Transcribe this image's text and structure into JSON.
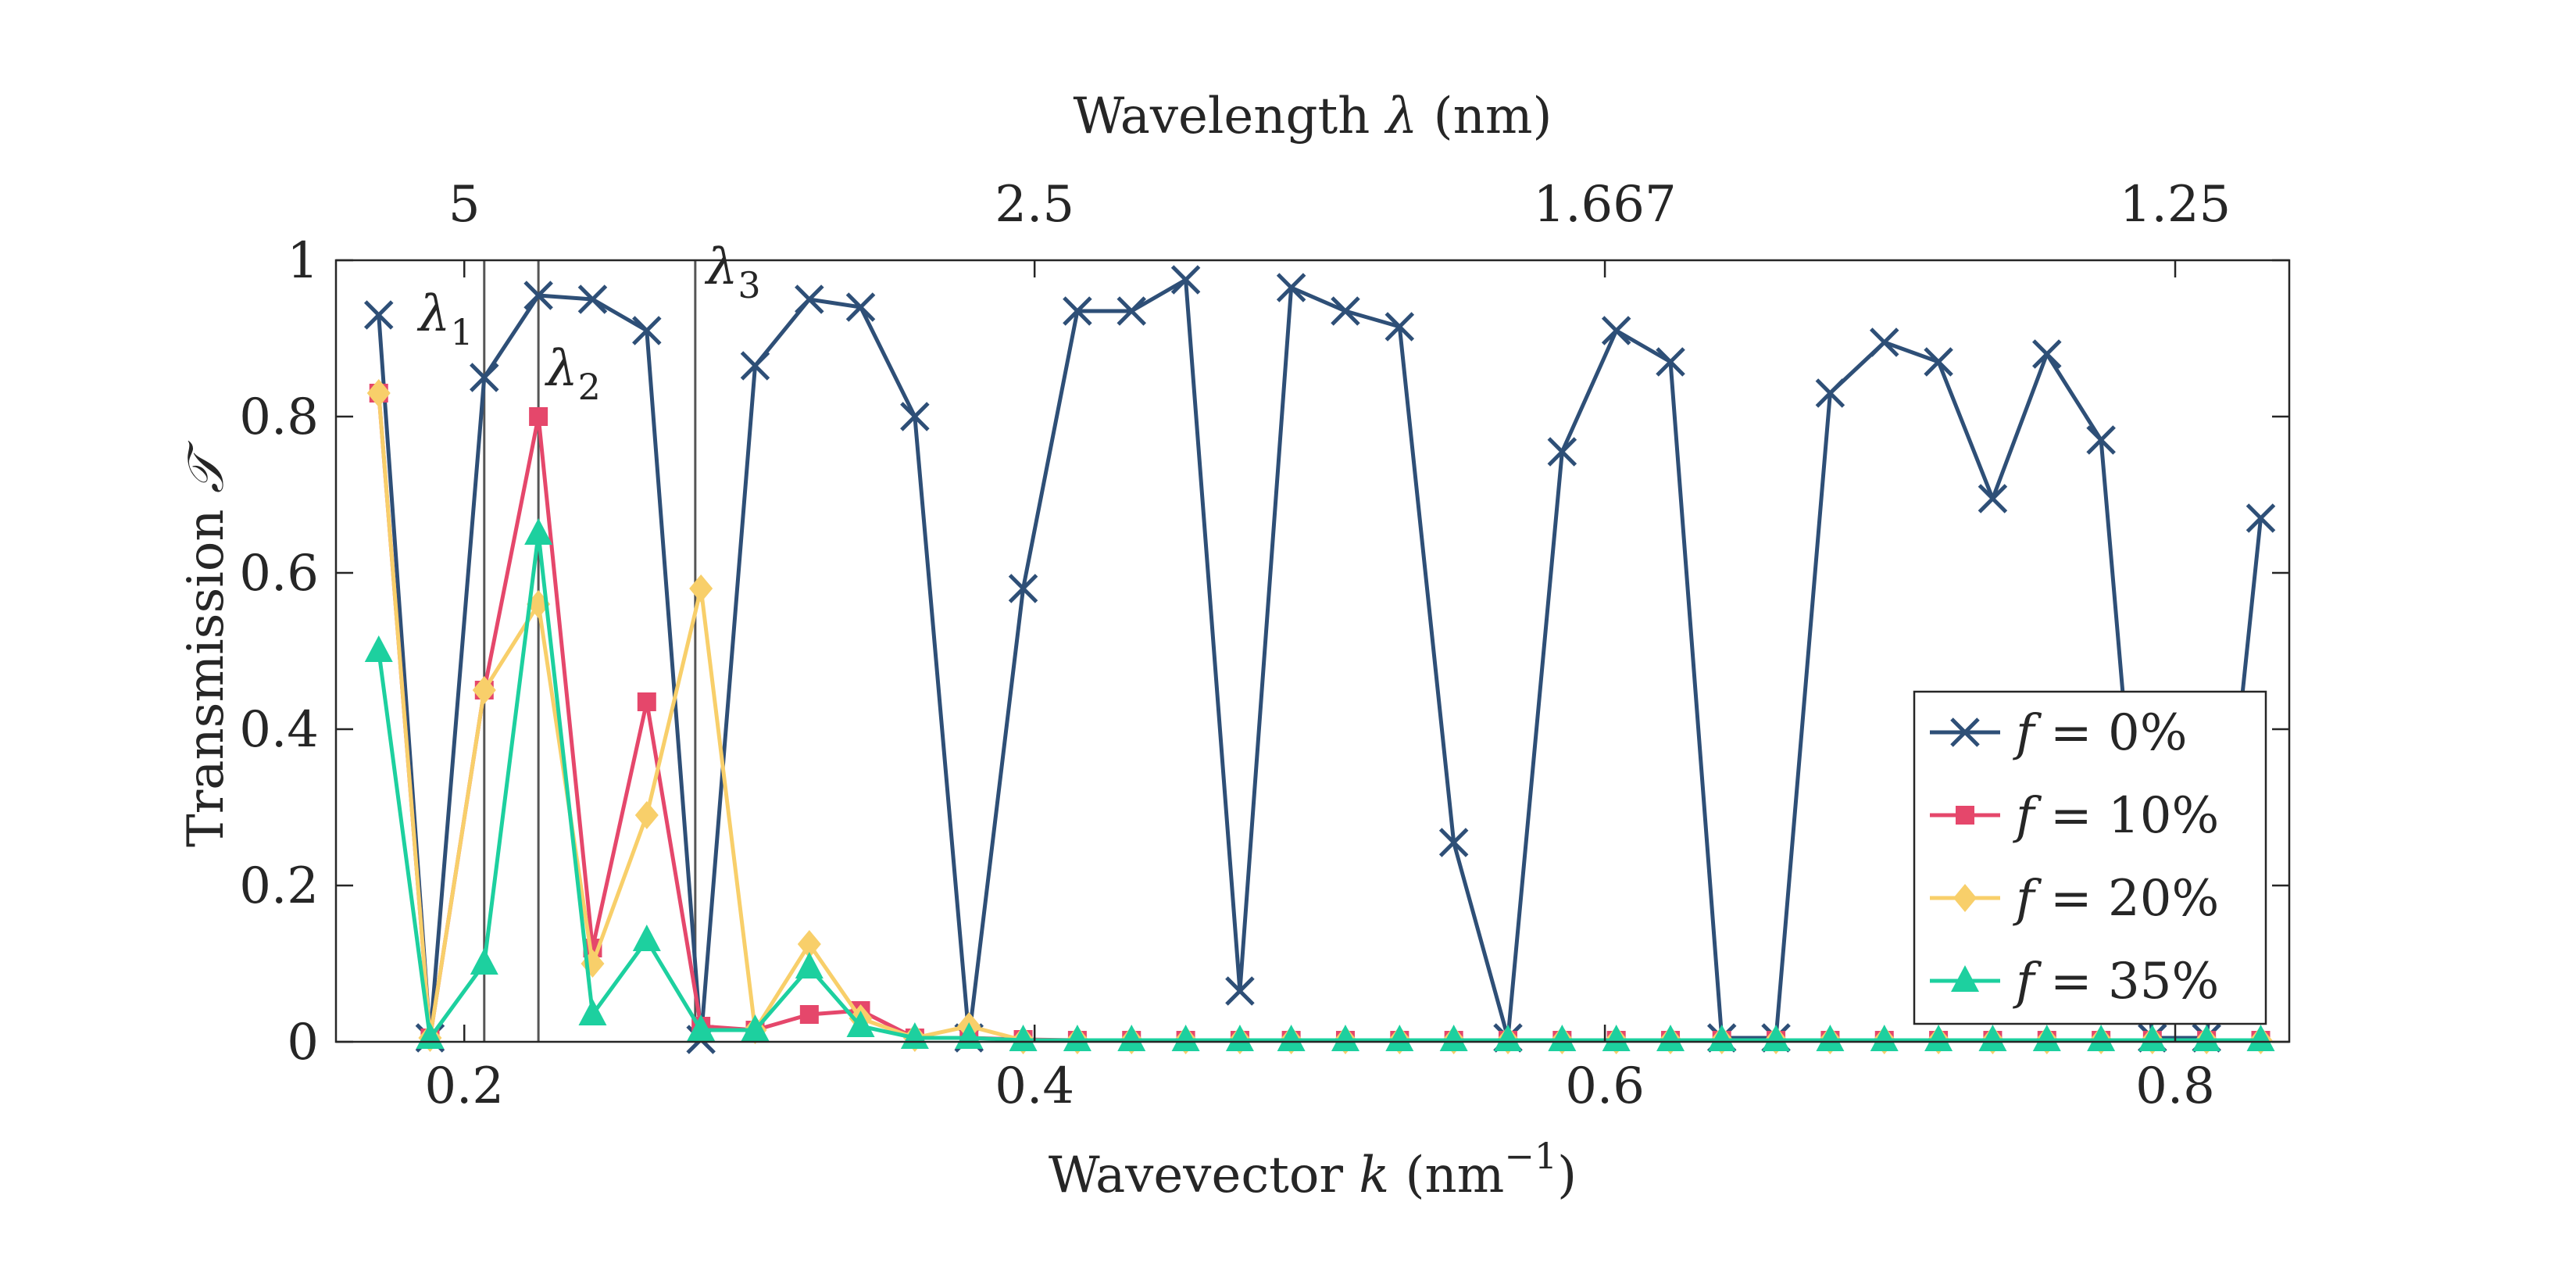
{
  "chart_data": {
    "type": "line",
    "xlabel_text": "Wavevector",
    "xlabel_var": "k",
    "xlabel_unit_open": "(nm",
    "xlabel_unit_exp": "−1",
    "xlabel_unit_close": ")",
    "top_label_text": "Wavelength",
    "top_label_var": "λ",
    "top_label_unit": "(nm)",
    "ylabel_text": "Transmission",
    "ylabel_var": "𝒯",
    "xlim": [
      0.155,
      0.84
    ],
    "ylim": [
      0,
      1
    ],
    "x_ticks": [
      0.2,
      0.4,
      0.6,
      0.8
    ],
    "x_tick_labels": [
      "0.2",
      "0.4",
      "0.6",
      "0.8"
    ],
    "y_ticks": [
      0,
      0.2,
      0.4,
      0.6,
      0.8,
      1
    ],
    "y_tick_labels": [
      "0",
      "0.2",
      "0.4",
      "0.6",
      "0.8",
      "1"
    ],
    "top_ticks": [
      0.2,
      0.4,
      0.6,
      0.8
    ],
    "top_tick_labels": [
      "5",
      "2.5",
      "1.667",
      "1.25"
    ],
    "vlines": [
      {
        "x": 0.207,
        "label": "λ",
        "sub": "1",
        "anchor_y": 0.93
      },
      {
        "x": 0.226,
        "label": "λ",
        "sub": "2",
        "anchor_y": 0.86
      },
      {
        "x": 0.281,
        "label": "λ",
        "sub": "3",
        "anchor_y": 0.99
      }
    ],
    "legend_position": "bottom-right",
    "x": [
      0.17,
      0.188,
      0.207,
      0.226,
      0.245,
      0.264,
      0.283,
      0.302,
      0.321,
      0.339,
      0.358,
      0.377,
      0.396,
      0.415,
      0.434,
      0.453,
      0.472,
      0.49,
      0.509,
      0.528,
      0.547,
      0.566,
      0.585,
      0.604,
      0.623,
      0.641,
      0.66,
      0.679,
      0.698,
      0.717,
      0.736,
      0.755,
      0.774,
      0.792,
      0.811,
      0.83
    ],
    "series": [
      {
        "name": "f = 0%",
        "var": "f",
        "eq": " = ",
        "val": "0%",
        "color": "#2e4f77",
        "marker": "x",
        "values": [
          0.93,
          0.005,
          0.85,
          0.955,
          0.95,
          0.91,
          0.003,
          0.865,
          0.95,
          0.94,
          0.8,
          0.005,
          0.58,
          0.935,
          0.935,
          0.975,
          0.065,
          0.965,
          0.935,
          0.915,
          0.255,
          0.005,
          0.755,
          0.91,
          0.87,
          0.005,
          0.005,
          0.83,
          0.895,
          0.87,
          0.695,
          0.88,
          0.77,
          0.005,
          0.005,
          0.67
        ]
      },
      {
        "name": "f = 10%",
        "var": "f",
        "eq": " = ",
        "val": "10%",
        "color": "#e5476b",
        "marker": "square",
        "values": [
          0.83,
          0.005,
          0.45,
          0.8,
          0.12,
          0.435,
          0.02,
          0.015,
          0.035,
          0.04,
          0.005,
          0.005,
          0.003,
          0.002,
          0.002,
          0.002,
          0.002,
          0.002,
          0.002,
          0.002,
          0.002,
          0.002,
          0.002,
          0.002,
          0.002,
          0.002,
          0.002,
          0.002,
          0.002,
          0.002,
          0.002,
          0.002,
          0.002,
          0.002,
          0.002,
          0.002
        ]
      },
      {
        "name": "f = 20%",
        "var": "f",
        "eq": " = ",
        "val": "20%",
        "color": "#f8cf6a",
        "marker": "diamond",
        "values": [
          0.83,
          0.005,
          0.45,
          0.56,
          0.1,
          0.29,
          0.58,
          0.015,
          0.125,
          0.03,
          0.005,
          0.02,
          0.002,
          0.002,
          0.002,
          0.002,
          0.002,
          0.002,
          0.002,
          0.002,
          0.002,
          0.002,
          0.002,
          0.002,
          0.002,
          0.002,
          0.002,
          0.002,
          0.002,
          0.002,
          0.002,
          0.002,
          0.002,
          0.002,
          0.002,
          0.002
        ]
      },
      {
        "name": "f = 35%",
        "var": "f",
        "eq": " = ",
        "val": "35%",
        "color": "#1dd09f",
        "marker": "triangle",
        "values": [
          0.5,
          0.005,
          0.1,
          0.65,
          0.035,
          0.13,
          0.015,
          0.015,
          0.095,
          0.02,
          0.005,
          0.005,
          0.002,
          0.002,
          0.002,
          0.002,
          0.002,
          0.002,
          0.002,
          0.002,
          0.002,
          0.002,
          0.002,
          0.002,
          0.002,
          0.002,
          0.002,
          0.002,
          0.002,
          0.002,
          0.002,
          0.002,
          0.002,
          0.002,
          0.002,
          0.002
        ]
      }
    ]
  }
}
